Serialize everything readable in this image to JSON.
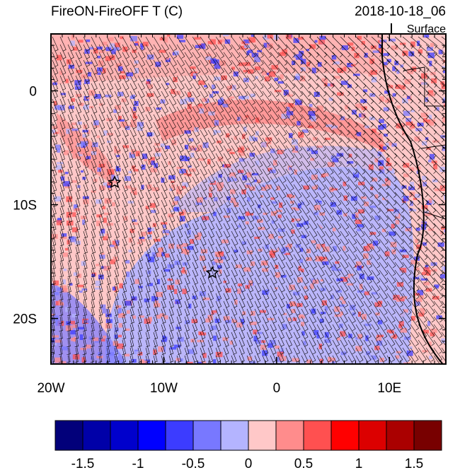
{
  "header": {
    "title": "FireON-FireOFF T (C)",
    "date": "2018-10-18_06",
    "level": "Surface"
  },
  "map": {
    "lon_range": [
      -20,
      15
    ],
    "lat_range": [
      -24,
      5
    ],
    "lon_ticks": [
      {
        "value": -20,
        "label": "20W"
      },
      {
        "value": -10,
        "label": "10W"
      },
      {
        "value": 0,
        "label": "0"
      },
      {
        "value": 10,
        "label": "10E"
      }
    ],
    "lat_ticks": [
      {
        "value": 0,
        "label": "0"
      },
      {
        "value": -10,
        "label": "10S"
      },
      {
        "value": -20,
        "label": "20S"
      }
    ]
  },
  "colorbar": {
    "colors": [
      "#02007a",
      "#0000a8",
      "#0000cc",
      "#0000ff",
      "#3c3cff",
      "#7878ff",
      "#b4b4ff",
      "#ffc8c8",
      "#ff8c8c",
      "#ff5050",
      "#ff0000",
      "#dc0000",
      "#aa0000",
      "#780000"
    ],
    "labels": [
      -1.5,
      -1,
      -0.5,
      0,
      0.5,
      1,
      1.5
    ]
  }
}
